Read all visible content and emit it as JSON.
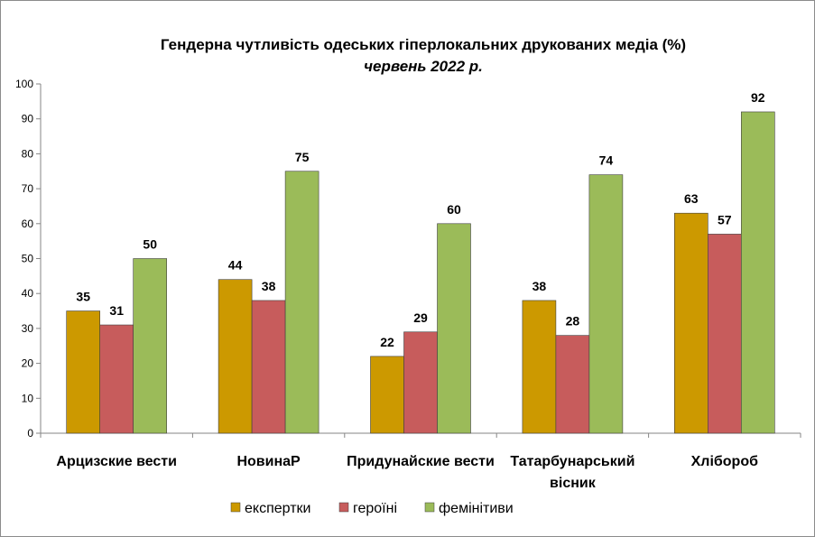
{
  "chart_data": {
    "type": "bar",
    "title": "Гендерна чутливість одеських гіперлокальних друкованих медіа (%)",
    "subtitle": "червень 2022 р.",
    "categories": [
      [
        "Арцизские вести"
      ],
      [
        "НовинаР"
      ],
      [
        "Придунайские вести"
      ],
      [
        "Татарбунарський",
        "вісник"
      ],
      [
        "Хлібороб"
      ]
    ],
    "series": [
      {
        "name": "експертки",
        "color": "#cc9900",
        "values": [
          35,
          44,
          22,
          38,
          63
        ]
      },
      {
        "name": "героїні",
        "color": "#c75c5c",
        "values": [
          31,
          38,
          29,
          28,
          57
        ]
      },
      {
        "name": "фемінітиви",
        "color": "#9bbb59",
        "values": [
          50,
          75,
          60,
          74,
          92
        ]
      }
    ],
    "ylim": [
      0,
      100
    ],
    "yticks": [
      0,
      10,
      20,
      30,
      40,
      50,
      60,
      70,
      80,
      90,
      100
    ],
    "grid": false,
    "legend_position": "bottom",
    "data_labels": true
  }
}
